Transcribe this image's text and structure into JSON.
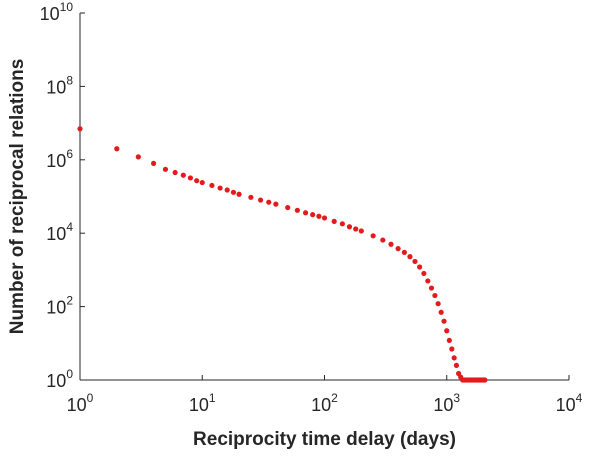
{
  "chart_data": {
    "type": "scatter",
    "title": "",
    "xlabel": "Reciprocity time delay (days)",
    "ylabel": "Number of reciprocal relations",
    "xscale": "log",
    "yscale": "log",
    "xlim": [
      1,
      10000
    ],
    "ylim": [
      1,
      10000000000
    ],
    "grid": false,
    "legend": "none",
    "marker_color": "#e41a1c",
    "x_ticks": [
      {
        "base": "10",
        "exp": "0",
        "value": 1
      },
      {
        "base": "10",
        "exp": "1",
        "value": 10
      },
      {
        "base": "10",
        "exp": "2",
        "value": 100
      },
      {
        "base": "10",
        "exp": "3",
        "value": 1000
      },
      {
        "base": "10",
        "exp": "4",
        "value": 10000
      }
    ],
    "y_ticks": [
      {
        "base": "10",
        "exp": "0",
        "value": 1
      },
      {
        "base": "10",
        "exp": "2",
        "value": 100
      },
      {
        "base": "10",
        "exp": "4",
        "value": 10000
      },
      {
        "base": "10",
        "exp": "6",
        "value": 1000000
      },
      {
        "base": "10",
        "exp": "8",
        "value": 100000000
      },
      {
        "base": "10",
        "exp": "10",
        "value": 10000000000
      }
    ],
    "series": [
      {
        "x": [
          1,
          2,
          3,
          4,
          5,
          6,
          7,
          8,
          9,
          10,
          12,
          14,
          16,
          18,
          20,
          25,
          30,
          35,
          40,
          50,
          60,
          70,
          80,
          90,
          100,
          120,
          140,
          160,
          180,
          200,
          250,
          300,
          350,
          400,
          450,
          500,
          550,
          600,
          650,
          700,
          750,
          800,
          850,
          900,
          950,
          1000,
          1050,
          1100,
          1150,
          1200,
          1250,
          1300,
          1350,
          1400,
          1450,
          1500,
          1550,
          1600,
          1650,
          1700,
          1750,
          1800,
          1850,
          1900,
          1950,
          2000,
          2050
        ],
        "y": [
          7000000,
          2000000,
          1200000,
          800000,
          550000,
          450000,
          380000,
          320000,
          270000,
          240000,
          200000,
          170000,
          150000,
          130000,
          115000,
          95000,
          80000,
          70000,
          62000,
          50000,
          42000,
          36000,
          32000,
          29000,
          26000,
          21000,
          18000,
          15000,
          13000,
          11500,
          8500,
          6500,
          5000,
          3800,
          3000,
          2300,
          1700,
          1200,
          800,
          500,
          320,
          200,
          120,
          70,
          40,
          22,
          12,
          7,
          4,
          2.5,
          1.5,
          1.2,
          1,
          1,
          1,
          1,
          1,
          1,
          1,
          1,
          1,
          1,
          1,
          1,
          1,
          1,
          1
        ]
      }
    ]
  }
}
